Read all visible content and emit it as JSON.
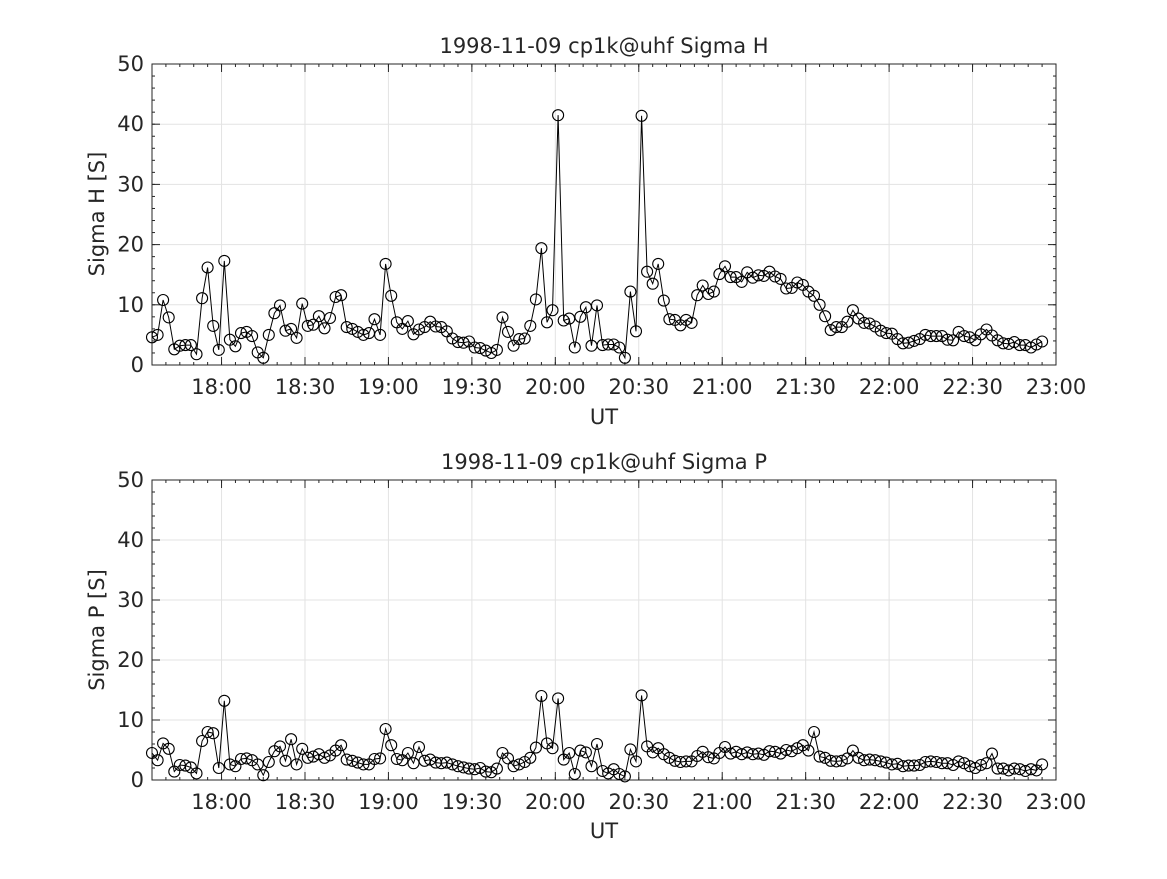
{
  "chart_data": [
    {
      "type": "line",
      "title": "1998-11-09  cp1k@uhf Sigma H",
      "xlabel": "UT",
      "ylabel": "Sigma H [S]",
      "ylim": [
        0,
        50
      ],
      "yticks": [
        0,
        10,
        20,
        30,
        40,
        50
      ],
      "xlim": [
        "17:35",
        "23:00"
      ],
      "xticks": [
        "18:00",
        "18:30",
        "19:00",
        "19:30",
        "20:00",
        "20:30",
        "21:00",
        "21:30",
        "22:00",
        "22:30",
        "23:00"
      ],
      "grid": true,
      "marker": "open-circle",
      "line_color": "#000000",
      "sample_interval_minutes": 2,
      "series": [
        {
          "x_start": "17:35",
          "values": [
            4.6,
            5.0,
            10.8,
            7.9,
            2.6,
            3.2,
            3.3,
            3.3,
            1.8,
            11.1,
            16.2,
            6.5,
            2.5,
            17.3,
            4.2,
            3.1,
            5.3,
            5.5,
            4.8,
            2.1,
            1.2,
            5.0,
            8.6,
            9.9,
            5.7,
            6.0,
            4.5,
            10.2,
            6.5,
            6.7,
            8.1,
            6.1,
            7.8,
            11.3,
            11.6,
            6.3,
            6.0,
            5.5,
            5.0,
            5.3,
            7.6,
            5.0,
            16.8,
            11.5,
            7.1,
            6.0,
            7.3,
            5.1,
            5.9,
            6.3,
            7.2,
            6.4,
            6.3,
            5.6,
            4.4,
            3.8,
            3.7,
            3.9,
            2.9,
            2.8,
            2.4,
            2.0,
            2.5,
            7.9,
            5.5,
            3.2,
            4.3,
            4.4,
            6.5,
            10.9,
            19.4,
            7.1,
            9.1,
            41.5,
            7.4,
            7.7,
            2.9,
            8.0,
            9.6,
            3.2,
            9.9,
            3.3,
            3.4,
            3.4,
            2.9,
            1.2,
            12.2,
            5.6,
            41.4,
            15.5,
            13.5,
            16.8,
            10.7,
            7.6,
            7.5,
            6.6,
            7.5,
            7.0,
            11.6,
            13.2,
            11.8,
            12.2,
            15.1,
            16.4,
            14.6,
            14.6,
            13.8,
            15.4,
            14.5,
            14.9,
            14.8,
            15.5,
            14.7,
            14.3,
            12.7,
            12.8,
            13.7,
            13.3,
            12.2,
            11.5,
            10.0,
            8.1,
            5.8,
            6.3,
            6.3,
            7.2,
            9.1,
            7.7,
            7.0,
            6.9,
            6.4,
            5.7,
            5.3,
            5.2,
            4.3,
            3.6,
            3.7,
            4.0,
            4.3,
            5.0,
            4.8,
            4.8,
            4.8,
            4.2,
            4.1,
            5.5,
            4.8,
            4.6,
            4.1,
            5.1,
            5.9,
            4.9,
            4.1,
            3.6,
            3.5,
            3.8,
            3.3,
            3.3,
            2.9,
            3.4,
            3.9
          ]
        }
      ]
    },
    {
      "type": "line",
      "title": "1998-11-09  cp1k@uhf Sigma P",
      "xlabel": "UT",
      "ylabel": "Sigma P [S]",
      "ylim": [
        0,
        50
      ],
      "yticks": [
        0,
        10,
        20,
        30,
        40,
        50
      ],
      "xlim": [
        "17:35",
        "23:00"
      ],
      "xticks": [
        "18:00",
        "18:30",
        "19:00",
        "19:30",
        "20:00",
        "20:30",
        "21:00",
        "21:30",
        "22:00",
        "22:30",
        "23:00"
      ],
      "grid": true,
      "marker": "open-circle",
      "line_color": "#000000",
      "sample_interval_minutes": 2,
      "series": [
        {
          "x_start": "17:35",
          "values": [
            4.5,
            3.3,
            6.1,
            5.2,
            1.4,
            2.5,
            2.4,
            2.1,
            1.1,
            6.5,
            8.0,
            7.8,
            2.0,
            13.2,
            2.6,
            2.3,
            3.5,
            3.6,
            3.3,
            2.6,
            0.8,
            3.0,
            4.8,
            5.6,
            3.2,
            6.8,
            2.6,
            5.2,
            3.7,
            3.9,
            4.3,
            3.7,
            4.1,
            4.9,
            5.8,
            3.4,
            3.2,
            2.9,
            2.6,
            2.6,
            3.5,
            3.6,
            8.5,
            5.8,
            3.5,
            3.3,
            4.5,
            2.8,
            5.5,
            3.2,
            3.4,
            2.9,
            2.8,
            2.9,
            2.6,
            2.3,
            2.1,
            1.9,
            1.8,
            2.0,
            1.4,
            1.3,
            1.9,
            4.5,
            3.6,
            2.3,
            2.6,
            3.0,
            3.7,
            5.4,
            14.0,
            6.1,
            5.3,
            13.6,
            3.4,
            4.5,
            1.0,
            4.9,
            4.6,
            2.3,
            6.0,
            1.5,
            1.1,
            1.8,
            1.0,
            0.6,
            5.1,
            3.1,
            14.1,
            5.6,
            4.6,
            5.3,
            4.3,
            3.7,
            3.2,
            3.0,
            3.1,
            3.1,
            4.0,
            4.7,
            3.8,
            3.6,
            4.5,
            5.5,
            4.4,
            4.7,
            4.3,
            4.6,
            4.3,
            4.4,
            4.2,
            4.8,
            4.7,
            4.4,
            5.0,
            4.8,
            5.3,
            5.8,
            4.9,
            8.0,
            3.9,
            3.7,
            3.2,
            3.1,
            3.2,
            3.6,
            4.9,
            3.7,
            3.3,
            3.4,
            3.3,
            3.1,
            2.9,
            2.6,
            2.7,
            2.3,
            2.4,
            2.4,
            2.5,
            3.0,
            3.1,
            3.0,
            2.8,
            2.8,
            2.5,
            3.1,
            2.8,
            2.3,
            2.0,
            2.5,
            2.8,
            4.4,
            1.9,
            1.9,
            1.6,
            1.9,
            1.8,
            1.5,
            1.8,
            1.6,
            2.6
          ]
        }
      ]
    }
  ]
}
